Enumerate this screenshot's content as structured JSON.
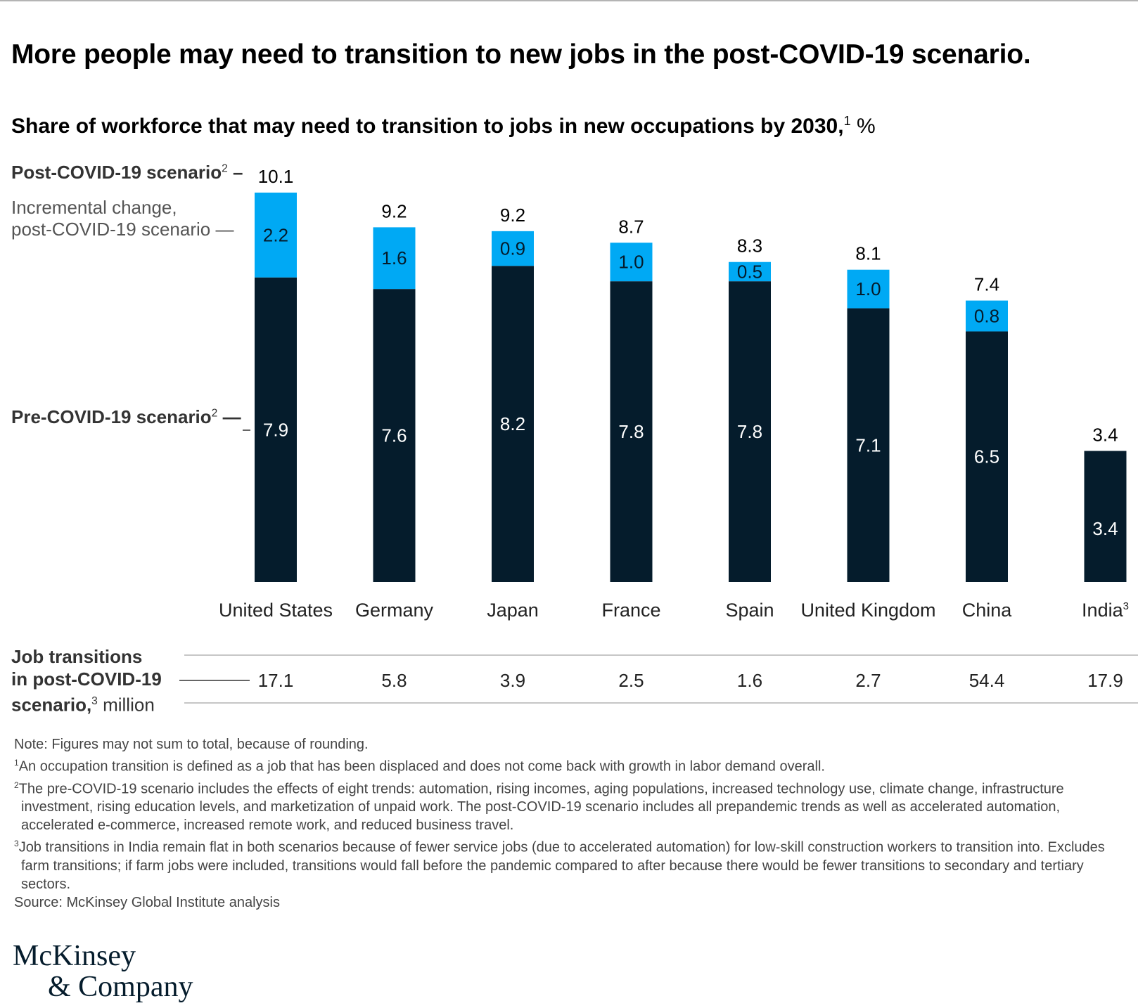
{
  "title": "More people may need to transition to new jobs in the post-COVID-19 scenario.",
  "subtitle": {
    "text": "Share of workforce that may need to transition to jobs in new occupations by 2030,",
    "sup": "1",
    "unit": "%"
  },
  "labels": {
    "post": "Post-COVID-19 scenario",
    "post_sup": "2",
    "incremental_line1": "Incremental change,",
    "incremental_line2": "post-COVID-19 scenario",
    "pre": "Pre-COVID-19 scenario",
    "pre_sup": "2"
  },
  "job_transitions": {
    "line1": "Job transitions",
    "line2": "in post-COVID-19",
    "line3": "scenario,",
    "sup": "3",
    "unit": "million"
  },
  "colors": {
    "pre": "#051c2c",
    "incremental": "#00a9f4",
    "rule": "#b4b4b4"
  },
  "chart_data": {
    "type": "bar",
    "stacked": true,
    "categories": [
      "United States",
      "Germany",
      "Japan",
      "France",
      "Spain",
      "United Kingdom",
      "China",
      "India"
    ],
    "category_sups": [
      "",
      "",
      "",
      "",
      "",
      "",
      "",
      "3"
    ],
    "series": [
      {
        "name": "Pre-COVID-19 scenario",
        "values": [
          7.9,
          7.6,
          8.2,
          7.8,
          7.8,
          7.1,
          6.5,
          3.4
        ]
      },
      {
        "name": "Incremental change, post-COVID-19 scenario",
        "values": [
          2.2,
          1.6,
          0.9,
          1.0,
          0.5,
          1.0,
          0.8,
          null
        ]
      }
    ],
    "pre_labels": [
      "7.9",
      "7.6",
      "8.2",
      "7.8",
      "7.8",
      "7.1",
      "6.5",
      "3.4"
    ],
    "incremental_labels": [
      "2.2",
      "1.6",
      "0.9",
      "1.0",
      "0.5",
      "1.0",
      "0.8",
      ""
    ],
    "totals": [
      "10.1",
      "9.2",
      "9.2",
      "8.7",
      "8.3",
      "8.1",
      "7.4",
      "3.4"
    ],
    "total_values": [
      10.1,
      9.2,
      9.2,
      8.7,
      8.3,
      8.1,
      7.4,
      3.4
    ],
    "job_transitions_millions": [
      "17.1",
      "5.8",
      "3.9",
      "2.5",
      "1.6",
      "2.7",
      "54.4",
      "17.9"
    ],
    "ylim": [
      0,
      10.1
    ]
  },
  "notes": {
    "note": "Note: Figures may not sum to total, because of rounding.",
    "fn1_num": "1",
    "fn1": "An occupation transition is defined as a job that has been displaced and does not come back with growth in labor demand overall.",
    "fn2_num": "2",
    "fn2": "The pre-COVID-19 scenario includes the effects of eight trends: automation, rising incomes, aging populations, increased technology use, climate change, infrastructure investment, rising education levels, and marketization of unpaid work. The post-COVID-19 scenario includes all prepandemic trends as well as accelerated automation, accelerated e-commerce, increased remote work, and reduced business travel.",
    "fn3_num": "3",
    "fn3": "Job transitions in India remain flat in both scenarios because of fewer service jobs (due to accelerated automation) for low-skill construction workers to transition into. Excludes farm transitions; if farm jobs were included, transitions would fall before the pandemic compared to after because there would be fewer transitions to secondary and tertiary sectors.",
    "source": "Source: McKinsey Global Institute analysis"
  },
  "logo": {
    "line1": "McKinsey",
    "line2": "& Company"
  }
}
